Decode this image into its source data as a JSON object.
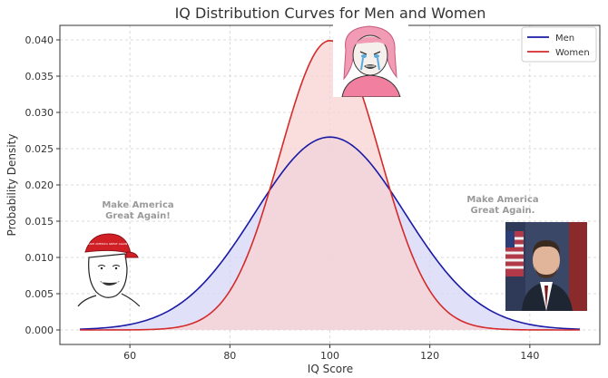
{
  "chart_data": {
    "type": "area",
    "title": "IQ Distribution Curves for Men and Women",
    "xlabel": "IQ Score",
    "ylabel": "Probability Density",
    "xlim": [
      46,
      154
    ],
    "ylim": [
      -0.002,
      0.042
    ],
    "xticks": [
      60,
      80,
      100,
      120,
      140
    ],
    "yticks": [
      0.0,
      0.005,
      0.01,
      0.015,
      0.02,
      0.025,
      0.03,
      0.035,
      0.04
    ],
    "grid": true,
    "legend_position": "top-right",
    "x_range": [
      50,
      150
    ],
    "series": [
      {
        "name": "Men",
        "distribution": "normal",
        "mean": 100,
        "sd": 15,
        "peak": 0.0266,
        "color": "#1a1aa6",
        "fill": "#d5d5f5"
      },
      {
        "name": "Women",
        "distribution": "normal",
        "mean": 100,
        "sd": 10,
        "peak": 0.0399,
        "color": "#d42a2a",
        "fill": "#f8d3d3"
      }
    ]
  },
  "annotations": {
    "left_caption": "Make America\nGreat Again!",
    "right_caption": "Make America\nGreat Again.",
    "left_cap_text": "MAKE AMERICA GREAT AGAIN"
  },
  "colors": {
    "men": "#1a1aa6",
    "women": "#d42a2a"
  }
}
